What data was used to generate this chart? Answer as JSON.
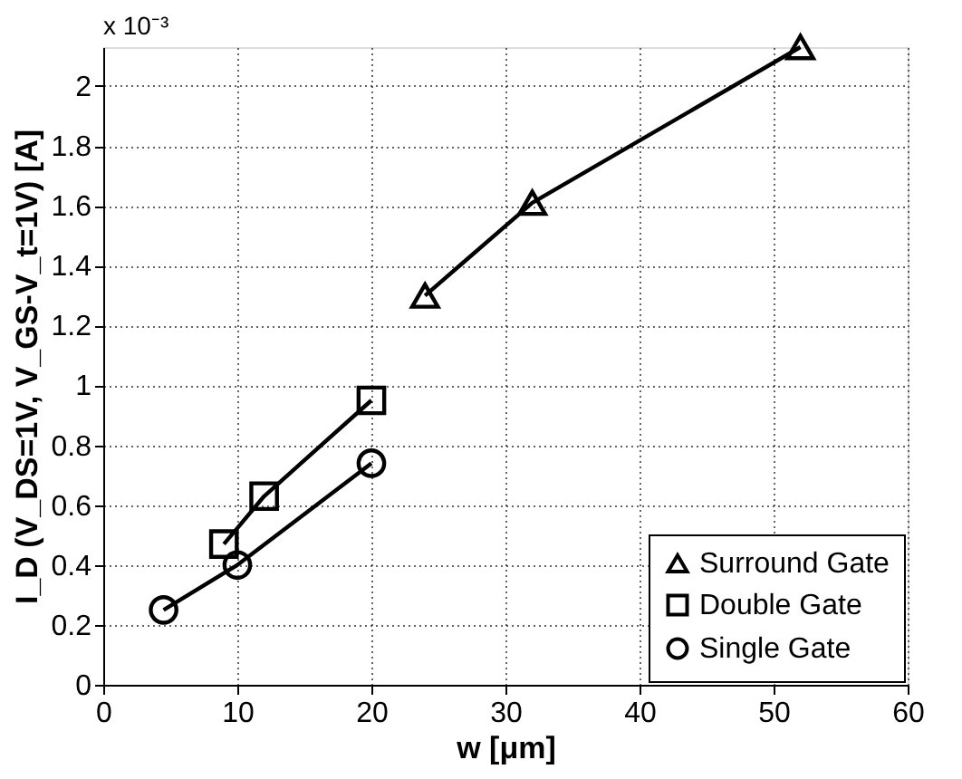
{
  "chart_data": {
    "type": "line",
    "xlabel": "w [μm]",
    "ylabel": "I_D (V_DS=1V, V_GS-V_t=1V) [A]",
    "annotations": [
      "x 10⁻³"
    ],
    "series": [
      {
        "name": "Surround Gate",
        "color": "#000000",
        "marker": "triangle",
        "x": [
          24,
          32,
          52
        ],
        "values": [
          1.3,
          1.61,
          2.13
        ]
      },
      {
        "name": "Double Gate",
        "color": "#000000",
        "marker": "square",
        "x": [
          9,
          12,
          20
        ],
        "values": [
          0.47,
          0.63,
          0.95
        ]
      },
      {
        "name": "Single Gate",
        "color": "#000000",
        "marker": "circle",
        "x": [
          4.5,
          10,
          20
        ],
        "values": [
          0.25,
          0.4,
          0.74
        ]
      }
    ],
    "xlim": [
      0,
      60
    ],
    "xticks": [
      0,
      10,
      20,
      30,
      40,
      50,
      60
    ],
    "ylim": [
      0,
      2.13
    ],
    "yticks": [
      0,
      0.2,
      0.4,
      0.6,
      0.8,
      1,
      1.2,
      1.4,
      1.6,
      1.8,
      2
    ],
    "grid": true,
    "legend": "bottom right",
    "line_style": "solid"
  }
}
